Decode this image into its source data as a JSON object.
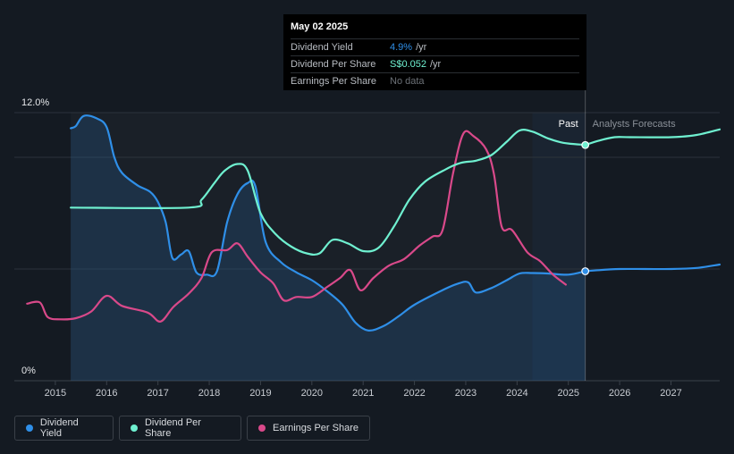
{
  "tooltip": {
    "date": "May 02 2025",
    "rows": [
      {
        "label": "Dividend Yield",
        "value": "4.9%",
        "unit": "/yr",
        "color": "#2f8fe8"
      },
      {
        "label": "Dividend Per Share",
        "value": "S$0.052",
        "unit": "/yr",
        "color": "#6ff0d0"
      },
      {
        "label": "Earnings Per Share",
        "value": "No data",
        "unit": "",
        "color": "#6c7177"
      }
    ]
  },
  "regions": {
    "past": "Past",
    "forecast": "Analysts Forecasts"
  },
  "legend": [
    {
      "label": "Dividend Yield",
      "color": "#2f8fe8"
    },
    {
      "label": "Dividend Per Share",
      "color": "#6ff0d0"
    },
    {
      "label": "Earnings Per Share",
      "color": "#d9498a"
    }
  ],
  "chart_data": {
    "type": "line",
    "y_tick_labels": [
      "12.0%",
      "0%"
    ],
    "ylim": [
      0,
      12
    ],
    "x_ticks": [
      2015,
      2016,
      2017,
      2018,
      2019,
      2020,
      2021,
      2022,
      2023,
      2024,
      2025,
      2026,
      2027
    ],
    "xlim": [
      2014.2,
      2027.95
    ],
    "forecast_start": 2024.3,
    "current_x": 2025.33,
    "series": [
      {
        "name": "Dividend Yield",
        "color": "#2f8fe8",
        "fill": true,
        "points": [
          [
            2015.3,
            11.3
          ],
          [
            2015.4,
            11.4
          ],
          [
            2015.55,
            11.85
          ],
          [
            2015.8,
            11.75
          ],
          [
            2016.0,
            11.35
          ],
          [
            2016.15,
            10.0
          ],
          [
            2016.3,
            9.3
          ],
          [
            2016.6,
            8.75
          ],
          [
            2016.85,
            8.45
          ],
          [
            2017.0,
            8.0
          ],
          [
            2017.15,
            7.1
          ],
          [
            2017.28,
            5.5
          ],
          [
            2017.45,
            5.65
          ],
          [
            2017.6,
            5.8
          ],
          [
            2017.75,
            4.85
          ],
          [
            2017.95,
            4.75
          ],
          [
            2018.15,
            4.9
          ],
          [
            2018.35,
            7.1
          ],
          [
            2018.55,
            8.35
          ],
          [
            2018.75,
            8.85
          ],
          [
            2018.9,
            8.7
          ],
          [
            2019.1,
            6.2
          ],
          [
            2019.4,
            5.3
          ],
          [
            2019.7,
            4.85
          ],
          [
            2020.0,
            4.5
          ],
          [
            2020.3,
            4.0
          ],
          [
            2020.6,
            3.4
          ],
          [
            2020.85,
            2.6
          ],
          [
            2021.1,
            2.25
          ],
          [
            2021.4,
            2.45
          ],
          [
            2021.7,
            2.9
          ],
          [
            2022.0,
            3.4
          ],
          [
            2022.5,
            4.0
          ],
          [
            2022.85,
            4.35
          ],
          [
            2023.05,
            4.4
          ],
          [
            2023.2,
            3.95
          ],
          [
            2023.5,
            4.15
          ],
          [
            2023.8,
            4.5
          ],
          [
            2024.05,
            4.8
          ],
          [
            2024.3,
            4.82
          ],
          [
            2024.6,
            4.8
          ],
          [
            2025.0,
            4.75
          ],
          [
            2025.33,
            4.9
          ]
        ]
      },
      {
        "name": "Dividend Yield Forecast",
        "color": "#2f8fe8",
        "fill": false,
        "points": [
          [
            2025.33,
            4.9
          ],
          [
            2025.6,
            4.95
          ],
          [
            2026.0,
            5.0
          ],
          [
            2026.5,
            5.0
          ],
          [
            2027.0,
            5.0
          ],
          [
            2027.5,
            5.05
          ],
          [
            2027.95,
            5.2
          ]
        ]
      },
      {
        "name": "Dividend Per Share",
        "color": "#6ff0d0",
        "fill": false,
        "points": [
          [
            2015.3,
            7.75
          ],
          [
            2017.6,
            7.75
          ],
          [
            2017.85,
            8.1
          ],
          [
            2018.1,
            8.85
          ],
          [
            2018.3,
            9.4
          ],
          [
            2018.55,
            9.7
          ],
          [
            2018.75,
            9.4
          ],
          [
            2019.0,
            7.5
          ],
          [
            2019.3,
            6.55
          ],
          [
            2019.6,
            6.0
          ],
          [
            2019.9,
            5.7
          ],
          [
            2020.15,
            5.7
          ],
          [
            2020.4,
            6.3
          ],
          [
            2020.7,
            6.15
          ],
          [
            2021.0,
            5.8
          ],
          [
            2021.3,
            5.95
          ],
          [
            2021.6,
            6.9
          ],
          [
            2021.9,
            8.1
          ],
          [
            2022.2,
            8.9
          ],
          [
            2022.6,
            9.45
          ],
          [
            2022.9,
            9.75
          ],
          [
            2023.2,
            9.85
          ],
          [
            2023.5,
            10.1
          ],
          [
            2023.8,
            10.7
          ],
          [
            2024.05,
            11.2
          ],
          [
            2024.3,
            11.15
          ],
          [
            2024.6,
            10.85
          ],
          [
            2024.9,
            10.65
          ],
          [
            2025.33,
            10.55
          ]
        ]
      },
      {
        "name": "Dividend Per Share Forecast",
        "color": "#6ff0d0",
        "fill": false,
        "points": [
          [
            2025.33,
            10.55
          ],
          [
            2025.6,
            10.75
          ],
          [
            2025.9,
            10.9
          ],
          [
            2026.2,
            10.9
          ],
          [
            2027.0,
            10.9
          ],
          [
            2027.5,
            11.0
          ],
          [
            2027.95,
            11.25
          ]
        ]
      },
      {
        "name": "Earnings Per Share",
        "color": "#d9498a",
        "fill": false,
        "points": [
          [
            2014.45,
            3.45
          ],
          [
            2014.7,
            3.5
          ],
          [
            2014.85,
            2.85
          ],
          [
            2015.1,
            2.75
          ],
          [
            2015.4,
            2.8
          ],
          [
            2015.7,
            3.1
          ],
          [
            2016.0,
            3.8
          ],
          [
            2016.3,
            3.35
          ],
          [
            2016.8,
            3.05
          ],
          [
            2017.05,
            2.65
          ],
          [
            2017.3,
            3.3
          ],
          [
            2017.6,
            3.9
          ],
          [
            2017.85,
            4.6
          ],
          [
            2018.05,
            5.75
          ],
          [
            2018.35,
            5.85
          ],
          [
            2018.55,
            6.15
          ],
          [
            2018.75,
            5.55
          ],
          [
            2019.0,
            4.85
          ],
          [
            2019.25,
            4.35
          ],
          [
            2019.45,
            3.6
          ],
          [
            2019.7,
            3.75
          ],
          [
            2020.0,
            3.75
          ],
          [
            2020.3,
            4.2
          ],
          [
            2020.55,
            4.6
          ],
          [
            2020.75,
            4.95
          ],
          [
            2020.95,
            4.05
          ],
          [
            2021.2,
            4.6
          ],
          [
            2021.5,
            5.15
          ],
          [
            2021.8,
            5.45
          ],
          [
            2022.1,
            6.05
          ],
          [
            2022.35,
            6.45
          ],
          [
            2022.55,
            6.75
          ],
          [
            2022.75,
            9.25
          ],
          [
            2022.95,
            11.05
          ],
          [
            2023.15,
            10.95
          ],
          [
            2023.4,
            10.35
          ],
          [
            2023.55,
            9.25
          ],
          [
            2023.7,
            6.9
          ],
          [
            2023.9,
            6.75
          ],
          [
            2024.2,
            5.75
          ],
          [
            2024.45,
            5.35
          ],
          [
            2024.7,
            4.75
          ],
          [
            2024.95,
            4.3
          ]
        ]
      }
    ]
  }
}
